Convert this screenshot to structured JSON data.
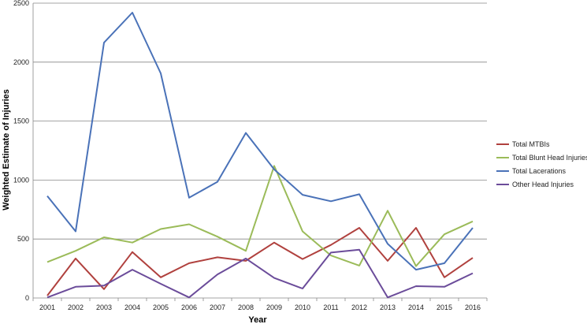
{
  "chart_data": {
    "type": "line",
    "xlabel": "Year",
    "ylabel": "Weighted Estimate of Injuries",
    "ylim": [
      0,
      2500
    ],
    "yticks": [
      "0",
      "500",
      "1000",
      "1500",
      "2000",
      "2500"
    ],
    "grid": true,
    "legend_position": "right",
    "categories": [
      "2001",
      "2002",
      "2003",
      "2004",
      "2005",
      "2006",
      "2007",
      "2008",
      "2009",
      "2010",
      "2011",
      "2012",
      "2013",
      "2014",
      "2015",
      "2016"
    ],
    "series": [
      {
        "name": "Total MTBIs",
        "color": "#b0413e",
        "values": [
          20,
          335,
          75,
          390,
          175,
          295,
          345,
          315,
          470,
          330,
          450,
          595,
          315,
          595,
          175,
          340
        ]
      },
      {
        "name": "Total Blunt Head Injuries",
        "color": "#9bbb59",
        "values": [
          305,
          400,
          515,
          470,
          585,
          625,
          520,
          400,
          1120,
          565,
          360,
          275,
          740,
          270,
          540,
          650
        ]
      },
      {
        "name": "Total Lacerations",
        "color": "#4a72b8",
        "values": [
          865,
          565,
          2165,
          2420,
          1905,
          850,
          985,
          1400,
          1090,
          875,
          820,
          880,
          460,
          240,
          295,
          595
        ]
      },
      {
        "name": "Other Head Injuries",
        "color": "#6b4c9a",
        "values": [
          5,
          95,
          105,
          240,
          120,
          5,
          200,
          335,
          170,
          80,
          385,
          410,
          5,
          100,
          95,
          210
        ]
      }
    ]
  }
}
